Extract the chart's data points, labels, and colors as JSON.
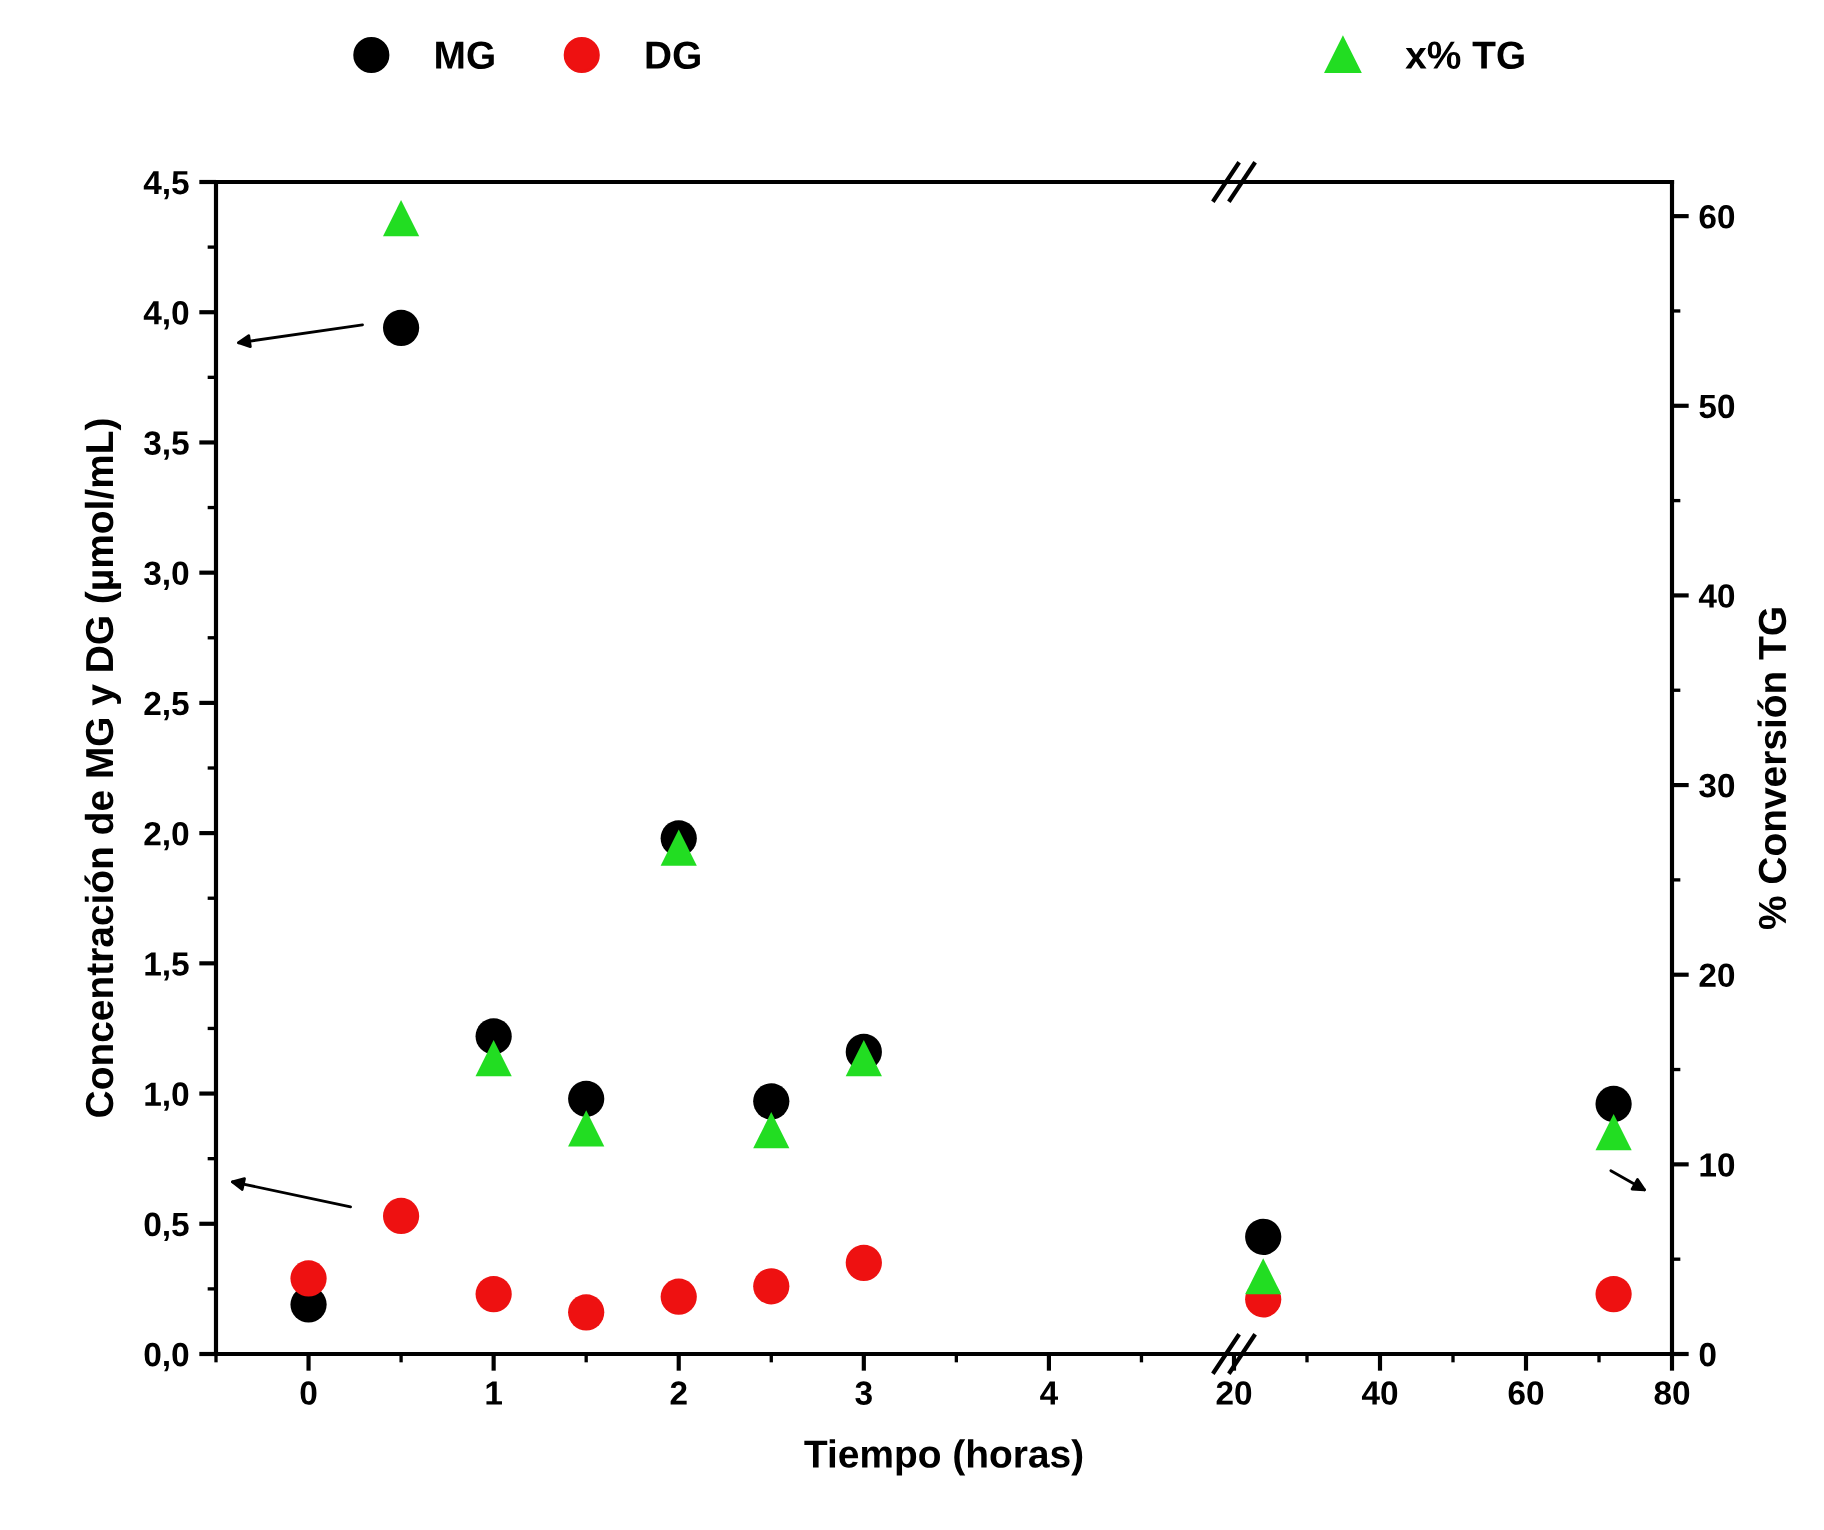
{
  "chart_data": [
    {
      "type": "scatter",
      "xlabel": "Tiempo (horas)",
      "ylabel": "Concentración de MG y DG (µmol/mL)",
      "x": [
        0,
        0.5,
        1,
        1.5,
        2,
        2.5,
        3
      ],
      "xlim": [
        -0.5,
        5
      ],
      "xticks": [
        0,
        1,
        2,
        3,
        4
      ],
      "ylim": [
        0,
        4.5
      ],
      "yticks": [
        {
          "value": 0,
          "label": "0,0"
        },
        {
          "value": 0.5,
          "label": "0,5"
        },
        {
          "value": 1,
          "label": "1,0"
        },
        {
          "value": 1.5,
          "label": "1,5"
        },
        {
          "value": 2,
          "label": "2,0"
        },
        {
          "value": 2.5,
          "label": "2,5"
        },
        {
          "value": 3,
          "label": "3,0"
        },
        {
          "value": 3.5,
          "label": "3,5"
        },
        {
          "value": 4,
          "label": "4,0"
        },
        {
          "value": 4.5,
          "label": "4,5"
        }
      ],
      "y2lim": [
        0,
        61.8
      ],
      "marker": "circle",
      "legend": "top left",
      "series": [
        {
          "name": "MG",
          "color": "#000000",
          "values": [
            0.19,
            3.94,
            1.22,
            0.98,
            1.98,
            0.97,
            1.16
          ]
        },
        {
          "name": "DG",
          "color": "#ee1111",
          "values": [
            0.29,
            0.53,
            0.23,
            0.16,
            0.22,
            0.26,
            0.35
          ]
        },
        {
          "color": "#22dd22",
          "axis": "y2",
          "marker": "triangle",
          "x": [
            0.5,
            1,
            1.5,
            2,
            2.5,
            3
          ],
          "values": [
            59.9,
            15.6,
            11.9,
            26.7,
            11.8,
            15.6
          ]
        }
      ]
    },
    {
      "type": "scatter",
      "x": [
        24,
        72
      ],
      "xlim": [
        20,
        80
      ],
      "xticks": [
        20,
        40,
        60,
        80
      ],
      "ylim": [
        0,
        4.5
      ],
      "y2label": "% Conversión TG",
      "y2lim": [
        0,
        61.8
      ],
      "y2ticks": [
        0,
        10,
        20,
        30,
        40,
        50,
        60
      ],
      "marker": "circle",
      "legend": "top left",
      "series": [
        {
          "color": "#000000",
          "values": [
            0.45,
            0.96
          ]
        },
        {
          "color": "#ee1111",
          "values": [
            0.21,
            0.23
          ]
        },
        {
          "name": "x% TG",
          "color": "#22dd22",
          "axis": "y2",
          "marker": "triangle",
          "values": [
            4.1,
            11.7
          ]
        }
      ]
    }
  ]
}
